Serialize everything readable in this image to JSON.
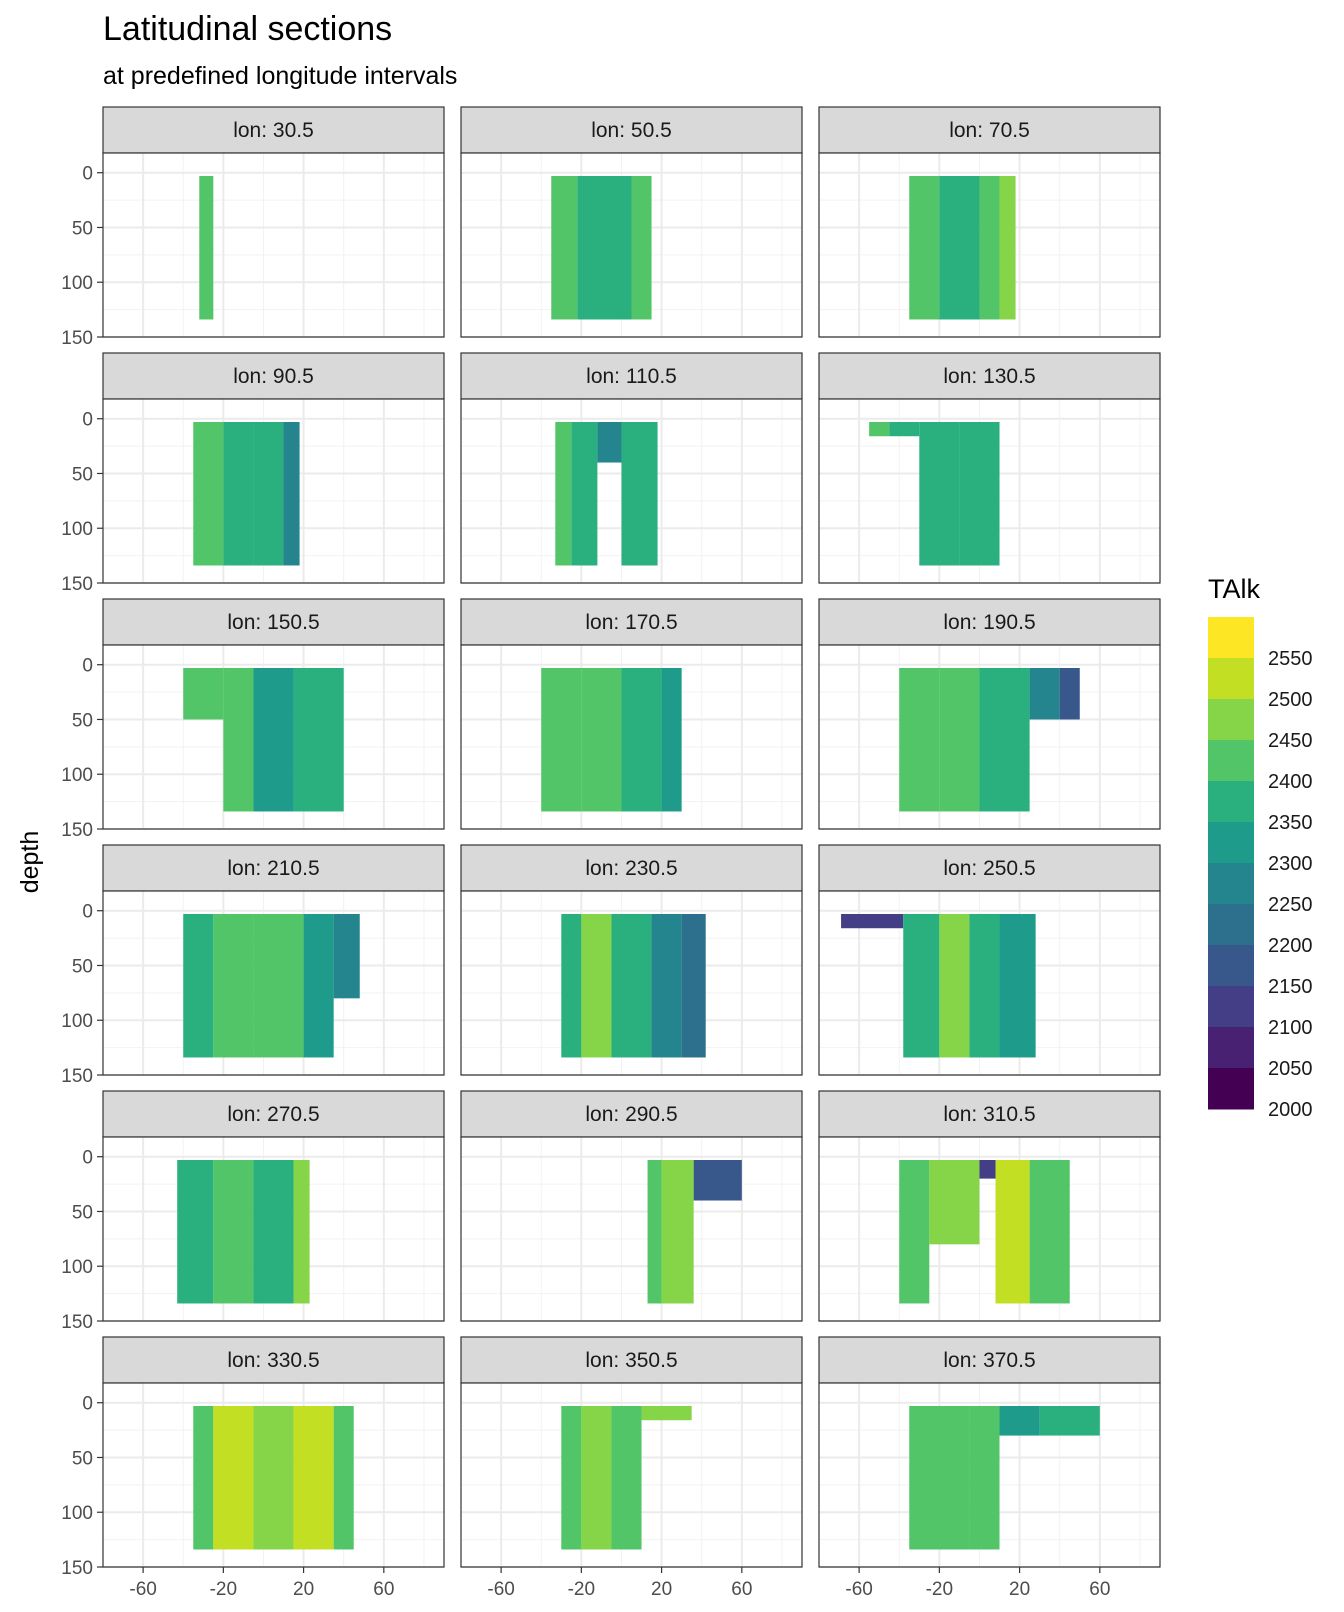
{
  "chart_data": {
    "type": "heatmap",
    "title": "Latitudinal sections",
    "subtitle": "at predefined longitude intervals",
    "xlabel": "",
    "ylabel": "depth",
    "x_ticks": [
      -60,
      -20,
      20,
      60
    ],
    "x_tick_labels": [
      "-60",
      "-20",
      "20",
      "60"
    ],
    "xlim": [
      -80,
      90
    ],
    "y_ticks": [
      0,
      50,
      100,
      150
    ],
    "y_tick_labels": [
      "0",
      "50",
      "100",
      "150"
    ],
    "ylim": [
      150,
      -18
    ],
    "grid": true,
    "legend": {
      "title": "TAlk",
      "position": "right",
      "labels": [
        "2550",
        "2500",
        "2450",
        "2400",
        "2350",
        "2300",
        "2250",
        "2200",
        "2150",
        "2100",
        "2050",
        "2000"
      ],
      "bins": [
        {
          "max": 2600,
          "color": "#FDE725"
        },
        {
          "max": 2550,
          "color": "#C2DF23"
        },
        {
          "max": 2500,
          "color": "#86D549"
        },
        {
          "max": 2450,
          "color": "#52C569"
        },
        {
          "max": 2400,
          "color": "#2AB07F"
        },
        {
          "max": 2350,
          "color": "#1E9B8A"
        },
        {
          "max": 2300,
          "color": "#25858E"
        },
        {
          "max": 2250,
          "color": "#2D708E"
        },
        {
          "max": 2200,
          "color": "#38588C"
        },
        {
          "max": 2150,
          "color": "#433E85"
        },
        {
          "max": 2100,
          "color": "#482173"
        },
        {
          "max": 2050,
          "color": "#440154"
        }
      ]
    },
    "panels": [
      {
        "label": "lon: 30.5",
        "regions": [
          {
            "lat": [
              -32,
              -25
            ],
            "depth": [
              3,
              134
            ],
            "value": 2420
          }
        ]
      },
      {
        "label": "lon: 50.5",
        "regions": [
          {
            "lat": [
              -35,
              -22
            ],
            "depth": [
              3,
              134
            ],
            "value": 2410
          },
          {
            "lat": [
              -22,
              5
            ],
            "depth": [
              3,
              134
            ],
            "value": 2390
          },
          {
            "lat": [
              5,
              15
            ],
            "depth": [
              3,
              134
            ],
            "value": 2420
          }
        ]
      },
      {
        "label": "lon: 70.5",
        "regions": [
          {
            "lat": [
              -35,
              -20
            ],
            "depth": [
              3,
              134
            ],
            "value": 2410
          },
          {
            "lat": [
              -20,
              0
            ],
            "depth": [
              3,
              134
            ],
            "value": 2380
          },
          {
            "lat": [
              0,
              10
            ],
            "depth": [
              3,
              134
            ],
            "value": 2430
          },
          {
            "lat": [
              10,
              18
            ],
            "depth": [
              3,
              134
            ],
            "value": 2470
          }
        ]
      },
      {
        "label": "lon: 90.5",
        "regions": [
          {
            "lat": [
              -35,
              -20
            ],
            "depth": [
              3,
              134
            ],
            "value": 2420
          },
          {
            "lat": [
              -20,
              -5
            ],
            "depth": [
              3,
              134
            ],
            "value": 2390
          },
          {
            "lat": [
              -5,
              10
            ],
            "depth": [
              3,
              134
            ],
            "value": 2370
          },
          {
            "lat": [
              10,
              18
            ],
            "depth": [
              3,
              134
            ],
            "value": 2290
          }
        ]
      },
      {
        "label": "lon: 110.5",
        "regions": [
          {
            "lat": [
              -33,
              -25
            ],
            "depth": [
              3,
              134
            ],
            "value": 2420
          },
          {
            "lat": [
              -25,
              -12
            ],
            "depth": [
              3,
              134
            ],
            "value": 2370
          },
          {
            "lat": [
              -12,
              0
            ],
            "depth": [
              3,
              40
            ],
            "value": 2270
          },
          {
            "lat": [
              0,
              18
            ],
            "depth": [
              3,
              134
            ],
            "value": 2360
          }
        ]
      },
      {
        "label": "lon: 130.5",
        "regions": [
          {
            "lat": [
              -55,
              -45
            ],
            "depth": [
              3,
              16
            ],
            "value": 2420
          },
          {
            "lat": [
              -45,
              -30
            ],
            "depth": [
              3,
              16
            ],
            "value": 2390
          },
          {
            "lat": [
              -30,
              -10
            ],
            "depth": [
              3,
              134
            ],
            "value": 2350
          },
          {
            "lat": [
              -10,
              10
            ],
            "depth": [
              3,
              134
            ],
            "value": 2380
          }
        ]
      },
      {
        "label": "lon: 150.5",
        "regions": [
          {
            "lat": [
              -40,
              -20
            ],
            "depth": [
              3,
              50
            ],
            "value": 2420
          },
          {
            "lat": [
              -20,
              -5
            ],
            "depth": [
              3,
              134
            ],
            "value": 2400
          },
          {
            "lat": [
              -5,
              15
            ],
            "depth": [
              3,
              134
            ],
            "value": 2340
          },
          {
            "lat": [
              15,
              40
            ],
            "depth": [
              3,
              134
            ],
            "value": 2370
          }
        ]
      },
      {
        "label": "lon: 170.5",
        "regions": [
          {
            "lat": [
              -40,
              -20
            ],
            "depth": [
              3,
              134
            ],
            "value": 2410
          },
          {
            "lat": [
              -20,
              0
            ],
            "depth": [
              3,
              134
            ],
            "value": 2430
          },
          {
            "lat": [
              0,
              20
            ],
            "depth": [
              3,
              134
            ],
            "value": 2380
          },
          {
            "lat": [
              20,
              30
            ],
            "depth": [
              3,
              134
            ],
            "value": 2340
          }
        ]
      },
      {
        "label": "lon: 190.5",
        "regions": [
          {
            "lat": [
              -40,
              -20
            ],
            "depth": [
              3,
              134
            ],
            "value": 2420
          },
          {
            "lat": [
              -20,
              0
            ],
            "depth": [
              3,
              134
            ],
            "value": 2440
          },
          {
            "lat": [
              0,
              25
            ],
            "depth": [
              3,
              134
            ],
            "value": 2380
          },
          {
            "lat": [
              25,
              40
            ],
            "depth": [
              3,
              50
            ],
            "value": 2290
          },
          {
            "lat": [
              40,
              50
            ],
            "depth": [
              3,
              50
            ],
            "value": 2190
          }
        ]
      },
      {
        "label": "lon: 210.5",
        "regions": [
          {
            "lat": [
              -40,
              -25
            ],
            "depth": [
              3,
              134
            ],
            "value": 2390
          },
          {
            "lat": [
              -25,
              -5
            ],
            "depth": [
              3,
              134
            ],
            "value": 2440
          },
          {
            "lat": [
              -5,
              20
            ],
            "depth": [
              3,
              134
            ],
            "value": 2400
          },
          {
            "lat": [
              20,
              35
            ],
            "depth": [
              3,
              134
            ],
            "value": 2320
          },
          {
            "lat": [
              35,
              48
            ],
            "depth": [
              3,
              80
            ],
            "value": 2260
          }
        ]
      },
      {
        "label": "lon: 230.5",
        "regions": [
          {
            "lat": [
              -30,
              -20
            ],
            "depth": [
              3,
              134
            ],
            "value": 2380
          },
          {
            "lat": [
              -20,
              -5
            ],
            "depth": [
              3,
              134
            ],
            "value": 2460
          },
          {
            "lat": [
              -5,
              15
            ],
            "depth": [
              3,
              134
            ],
            "value": 2380
          },
          {
            "lat": [
              15,
              30
            ],
            "depth": [
              3,
              134
            ],
            "value": 2290
          },
          {
            "lat": [
              30,
              42
            ],
            "depth": [
              3,
              134
            ],
            "value": 2240
          }
        ]
      },
      {
        "label": "lon: 250.5",
        "regions": [
          {
            "lat": [
              -69,
              -38
            ],
            "depth": [
              3,
              16
            ],
            "value": 2130
          },
          {
            "lat": [
              -38,
              -20
            ],
            "depth": [
              3,
              134
            ],
            "value": 2380
          },
          {
            "lat": [
              -20,
              -5
            ],
            "depth": [
              3,
              134
            ],
            "value": 2450
          },
          {
            "lat": [
              -5,
              10
            ],
            "depth": [
              3,
              134
            ],
            "value": 2390
          },
          {
            "lat": [
              10,
              28
            ],
            "depth": [
              3,
              134
            ],
            "value": 2330
          }
        ]
      },
      {
        "label": "lon: 270.5",
        "regions": [
          {
            "lat": [
              -43,
              -25
            ],
            "depth": [
              3,
              134
            ],
            "value": 2360
          },
          {
            "lat": [
              -25,
              -5
            ],
            "depth": [
              3,
              134
            ],
            "value": 2410
          },
          {
            "lat": [
              -5,
              15
            ],
            "depth": [
              3,
              134
            ],
            "value": 2380
          },
          {
            "lat": [
              15,
              23
            ],
            "depth": [
              3,
              134
            ],
            "value": 2450
          }
        ]
      },
      {
        "label": "lon: 290.5",
        "regions": [
          {
            "lat": [
              13,
              20
            ],
            "depth": [
              3,
              134
            ],
            "value": 2420
          },
          {
            "lat": [
              20,
              36
            ],
            "depth": [
              3,
              134
            ],
            "value": 2460
          },
          {
            "lat": [
              36,
              60
            ],
            "depth": [
              3,
              40
            ],
            "value": 2170
          }
        ]
      },
      {
        "label": "lon: 310.5",
        "regions": [
          {
            "lat": [
              -40,
              -25
            ],
            "depth": [
              3,
              134
            ],
            "value": 2420
          },
          {
            "lat": [
              -25,
              0
            ],
            "depth": [
              3,
              80
            ],
            "value": 2470
          },
          {
            "lat": [
              0,
              8
            ],
            "depth": [
              3,
              20
            ],
            "value": 2100
          },
          {
            "lat": [
              8,
              25
            ],
            "depth": [
              3,
              134
            ],
            "value": 2510
          },
          {
            "lat": [
              25,
              45
            ],
            "depth": [
              3,
              134
            ],
            "value": 2440
          }
        ]
      },
      {
        "label": "lon: 330.5",
        "regions": [
          {
            "lat": [
              -35,
              -25
            ],
            "depth": [
              3,
              134
            ],
            "value": 2420
          },
          {
            "lat": [
              -25,
              -5
            ],
            "depth": [
              3,
              134
            ],
            "value": 2510
          },
          {
            "lat": [
              -5,
              15
            ],
            "depth": [
              3,
              134
            ],
            "value": 2460
          },
          {
            "lat": [
              15,
              35
            ],
            "depth": [
              3,
              134
            ],
            "value": 2520
          },
          {
            "lat": [
              35,
              45
            ],
            "depth": [
              3,
              134
            ],
            "value": 2440
          }
        ]
      },
      {
        "label": "lon: 350.5",
        "regions": [
          {
            "lat": [
              -30,
              -20
            ],
            "depth": [
              3,
              134
            ],
            "value": 2430
          },
          {
            "lat": [
              -20,
              -5
            ],
            "depth": [
              3,
              134
            ],
            "value": 2470
          },
          {
            "lat": [
              -5,
              10
            ],
            "depth": [
              3,
              134
            ],
            "value": 2440
          },
          {
            "lat": [
              10,
              35
            ],
            "depth": [
              3,
              16
            ],
            "value": 2460
          }
        ]
      },
      {
        "label": "lon: 370.5",
        "regions": [
          {
            "lat": [
              -35,
              -5
            ],
            "depth": [
              3,
              134
            ],
            "value": 2420
          },
          {
            "lat": [
              -5,
              10
            ],
            "depth": [
              3,
              134
            ],
            "value": 2400
          },
          {
            "lat": [
              10,
              30
            ],
            "depth": [
              3,
              30
            ],
            "value": 2330
          },
          {
            "lat": [
              30,
              60
            ],
            "depth": [
              3,
              30
            ],
            "value": 2350
          }
        ]
      }
    ]
  }
}
